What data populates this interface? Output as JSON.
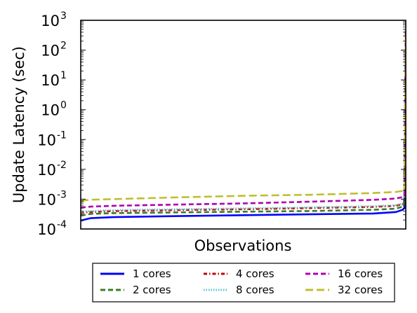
{
  "chart_data": {
    "type": "line",
    "xlabel": "Observations",
    "ylabel": "Update Latency (sec)",
    "yscale": "log",
    "ylim": [
      0.0001,
      1000
    ],
    "xlim": [
      0,
      100
    ],
    "grid": false,
    "xticks_visible": false,
    "yticks": [
      {
        "base": "10",
        "exp": "-4",
        "value": 0.0001
      },
      {
        "base": "10",
        "exp": "-3",
        "value": 0.001
      },
      {
        "base": "10",
        "exp": "-2",
        "value": 0.01
      },
      {
        "base": "10",
        "exp": "-1",
        "value": 0.1
      },
      {
        "base": "10",
        "exp": "0",
        "value": 1
      },
      {
        "base": "10",
        "exp": "1",
        "value": 10
      },
      {
        "base": "10",
        "exp": "2",
        "value": 100
      },
      {
        "base": "10",
        "exp": "3",
        "value": 1000
      }
    ],
    "legend_position": "below plot",
    "x": [
      0,
      1.5,
      3,
      10,
      30,
      50,
      70,
      90,
      97,
      99,
      99.6,
      100
    ],
    "series": [
      {
        "name": "1 cores",
        "color": "#0000ff",
        "dash": "solid",
        "values": [
          0.00019,
          0.00021,
          0.00023,
          0.00025,
          0.00027,
          0.00029,
          0.00031,
          0.00033,
          0.00037,
          0.00044,
          0.0005,
          500
        ]
      },
      {
        "name": "2 cores",
        "color": "#3a7d22",
        "dash": "dashed",
        "values": [
          0.00028,
          0.0003,
          0.00032,
          0.00034,
          0.00036,
          0.00038,
          0.0004,
          0.00044,
          0.00048,
          0.00056,
          0.0006,
          500
        ]
      },
      {
        "name": "4 cores",
        "color": "#c00000",
        "dash": "dashdot",
        "values": [
          0.00034,
          0.00036,
          0.00037,
          0.0004,
          0.00043,
          0.00046,
          0.0005,
          0.00055,
          0.0006,
          0.00068,
          0.00075,
          500
        ]
      },
      {
        "name": "8 cores",
        "color": "#5bc0d0",
        "dash": "dotted",
        "values": [
          0.00036,
          0.00039,
          0.0004,
          0.00043,
          0.00046,
          0.00049,
          0.00053,
          0.00058,
          0.00063,
          0.00071,
          0.0008,
          500
        ]
      },
      {
        "name": "16 cores",
        "color": "#b000b0",
        "dash": "dashed",
        "values": [
          0.00052,
          0.00054,
          0.00056,
          0.0006,
          0.00066,
          0.00072,
          0.00082,
          0.00095,
          0.00105,
          0.00118,
          0.0013,
          500
        ]
      },
      {
        "name": "32 cores",
        "color": "#bfbf30",
        "dash": "longdash",
        "values": [
          0.00085,
          0.00092,
          0.00096,
          0.001,
          0.00115,
          0.0013,
          0.0014,
          0.0016,
          0.00175,
          0.0019,
          0.002,
          500
        ]
      }
    ]
  }
}
